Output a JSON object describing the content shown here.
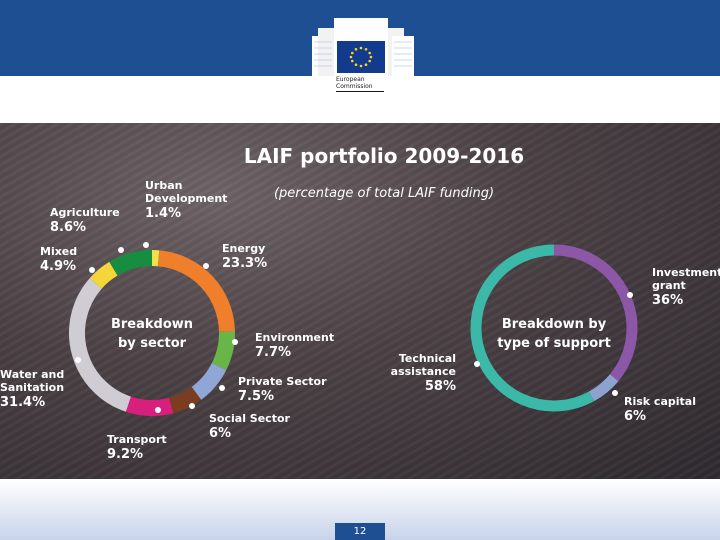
{
  "header": {
    "logo_text_line1": "European",
    "logo_text_line2": "Commission"
  },
  "footer": {
    "page_number": "12"
  },
  "chart_data": [
    {
      "type": "pie",
      "title": "LAIF portfolio 2009-2016",
      "subtitle": "(percentage of total LAIF funding)",
      "center_label": [
        "Breakdown",
        "by sector"
      ],
      "slices": [
        {
          "label": [
            "Urban",
            "Development"
          ],
          "value_text": "1.4%",
          "value": 1.4,
          "color": "#f3e14b"
        },
        {
          "label": [
            "Energy"
          ],
          "value_text": "23.3%",
          "value": 23.3,
          "color": "#ef7f2a"
        },
        {
          "label": [
            "Environment"
          ],
          "value_text": "7.7%",
          "value": 7.7,
          "color": "#6ab547"
        },
        {
          "label": [
            "Private Sector"
          ],
          "value_text": "7.5%",
          "value": 7.5,
          "color": "#8fa6d6"
        },
        {
          "label": [
            "Social Sector"
          ],
          "value_text": "6%",
          "value": 6,
          "color": "#7a3d1f"
        },
        {
          "label": [
            "Transport"
          ],
          "value_text": "9.2%",
          "value": 9.2,
          "color": "#d81f7d"
        },
        {
          "label": [
            "Water and",
            "Sanitation"
          ],
          "value_text": "31.4%",
          "value": 31.4,
          "color": "#cfcdd3"
        },
        {
          "label": [
            "Mixed"
          ],
          "value_text": "4.9%",
          "value": 4.9,
          "color": "#f5d63a"
        },
        {
          "label": [
            "Agriculture"
          ],
          "value_text": "8.6%",
          "value": 8.6,
          "color": "#178e3f"
        }
      ]
    },
    {
      "type": "pie",
      "center_label": [
        "Breakdown by",
        "type of support"
      ],
      "slices": [
        {
          "label": [
            "Investment",
            "grant"
          ],
          "value_text": "36%",
          "value": 36,
          "color": "#8b57a6"
        },
        {
          "label": [
            "Risk capital"
          ],
          "value_text": "6%",
          "value": 6,
          "color": "#8ea2cf"
        },
        {
          "label": [
            "Technical",
            "assistance"
          ],
          "value_text": "58%",
          "value": 58,
          "color": "#3bb8a8"
        }
      ]
    }
  ]
}
